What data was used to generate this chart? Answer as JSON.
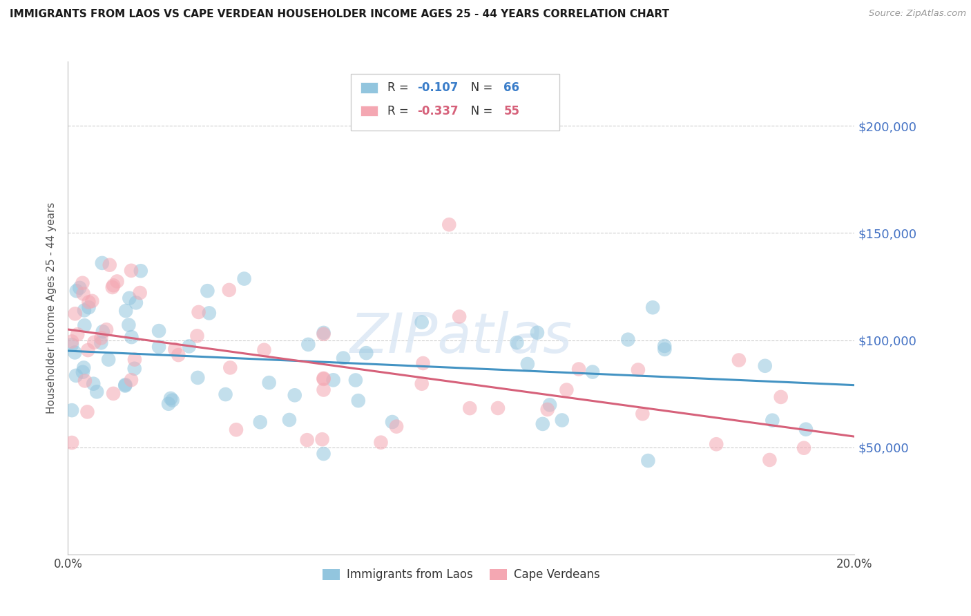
{
  "title": "IMMIGRANTS FROM LAOS VS CAPE VERDEAN HOUSEHOLDER INCOME AGES 25 - 44 YEARS CORRELATION CHART",
  "source": "Source: ZipAtlas.com",
  "ylabel": "Householder Income Ages 25 - 44 years",
  "xlim": [
    0.0,
    0.2
  ],
  "ylim": [
    0,
    230000
  ],
  "yticks": [
    50000,
    100000,
    150000,
    200000
  ],
  "ytick_labels": [
    "$50,000",
    "$100,000",
    "$150,000",
    "$200,000"
  ],
  "watermark": "ZIPatlas",
  "blue_color": "#92c5de",
  "pink_color": "#f4a7b2",
  "blue_line_color": "#4393c3",
  "pink_line_color": "#d6617a",
  "legend_label_blue": "Immigrants from Laos",
  "legend_label_pink": "Cape Verdeans",
  "blue_intercept": 95000,
  "blue_slope": -80000,
  "pink_intercept": 105000,
  "pink_slope": -250000,
  "blue_seed": 101,
  "pink_seed": 202,
  "blue_n": 66,
  "pink_n": 55,
  "R_blue": "-0.107",
  "R_pink": "-0.337",
  "N_blue": "66",
  "N_pink": "55"
}
